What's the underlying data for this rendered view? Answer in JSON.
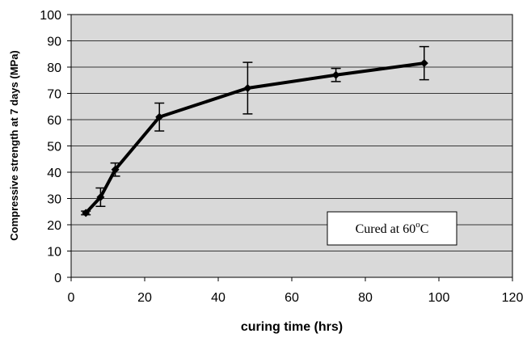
{
  "chart_data": {
    "type": "line",
    "x_label": "curing time (hrs)",
    "y_label": "Compressive strength at 7 days (MPa)",
    "annotation": [
      "Cured at 60",
      "o",
      "C"
    ],
    "x": [
      4,
      8,
      12,
      24,
      48,
      72,
      96
    ],
    "series": [
      {
        "color": "#000000",
        "values": [
          24.5,
          30.5,
          41,
          61,
          72,
          77,
          81.5
        ],
        "errors": [
          0.7,
          3.5,
          2.5,
          5.3,
          9.8,
          2.5,
          6.3
        ]
      }
    ],
    "xlim": [
      0,
      120
    ],
    "xticks": [
      0,
      20,
      40,
      60,
      80,
      100,
      120
    ],
    "ylim": [
      0,
      100
    ],
    "yticks": [
      0,
      10,
      20,
      30,
      40,
      50,
      60,
      70,
      80,
      90,
      100
    ],
    "grid": true
  }
}
